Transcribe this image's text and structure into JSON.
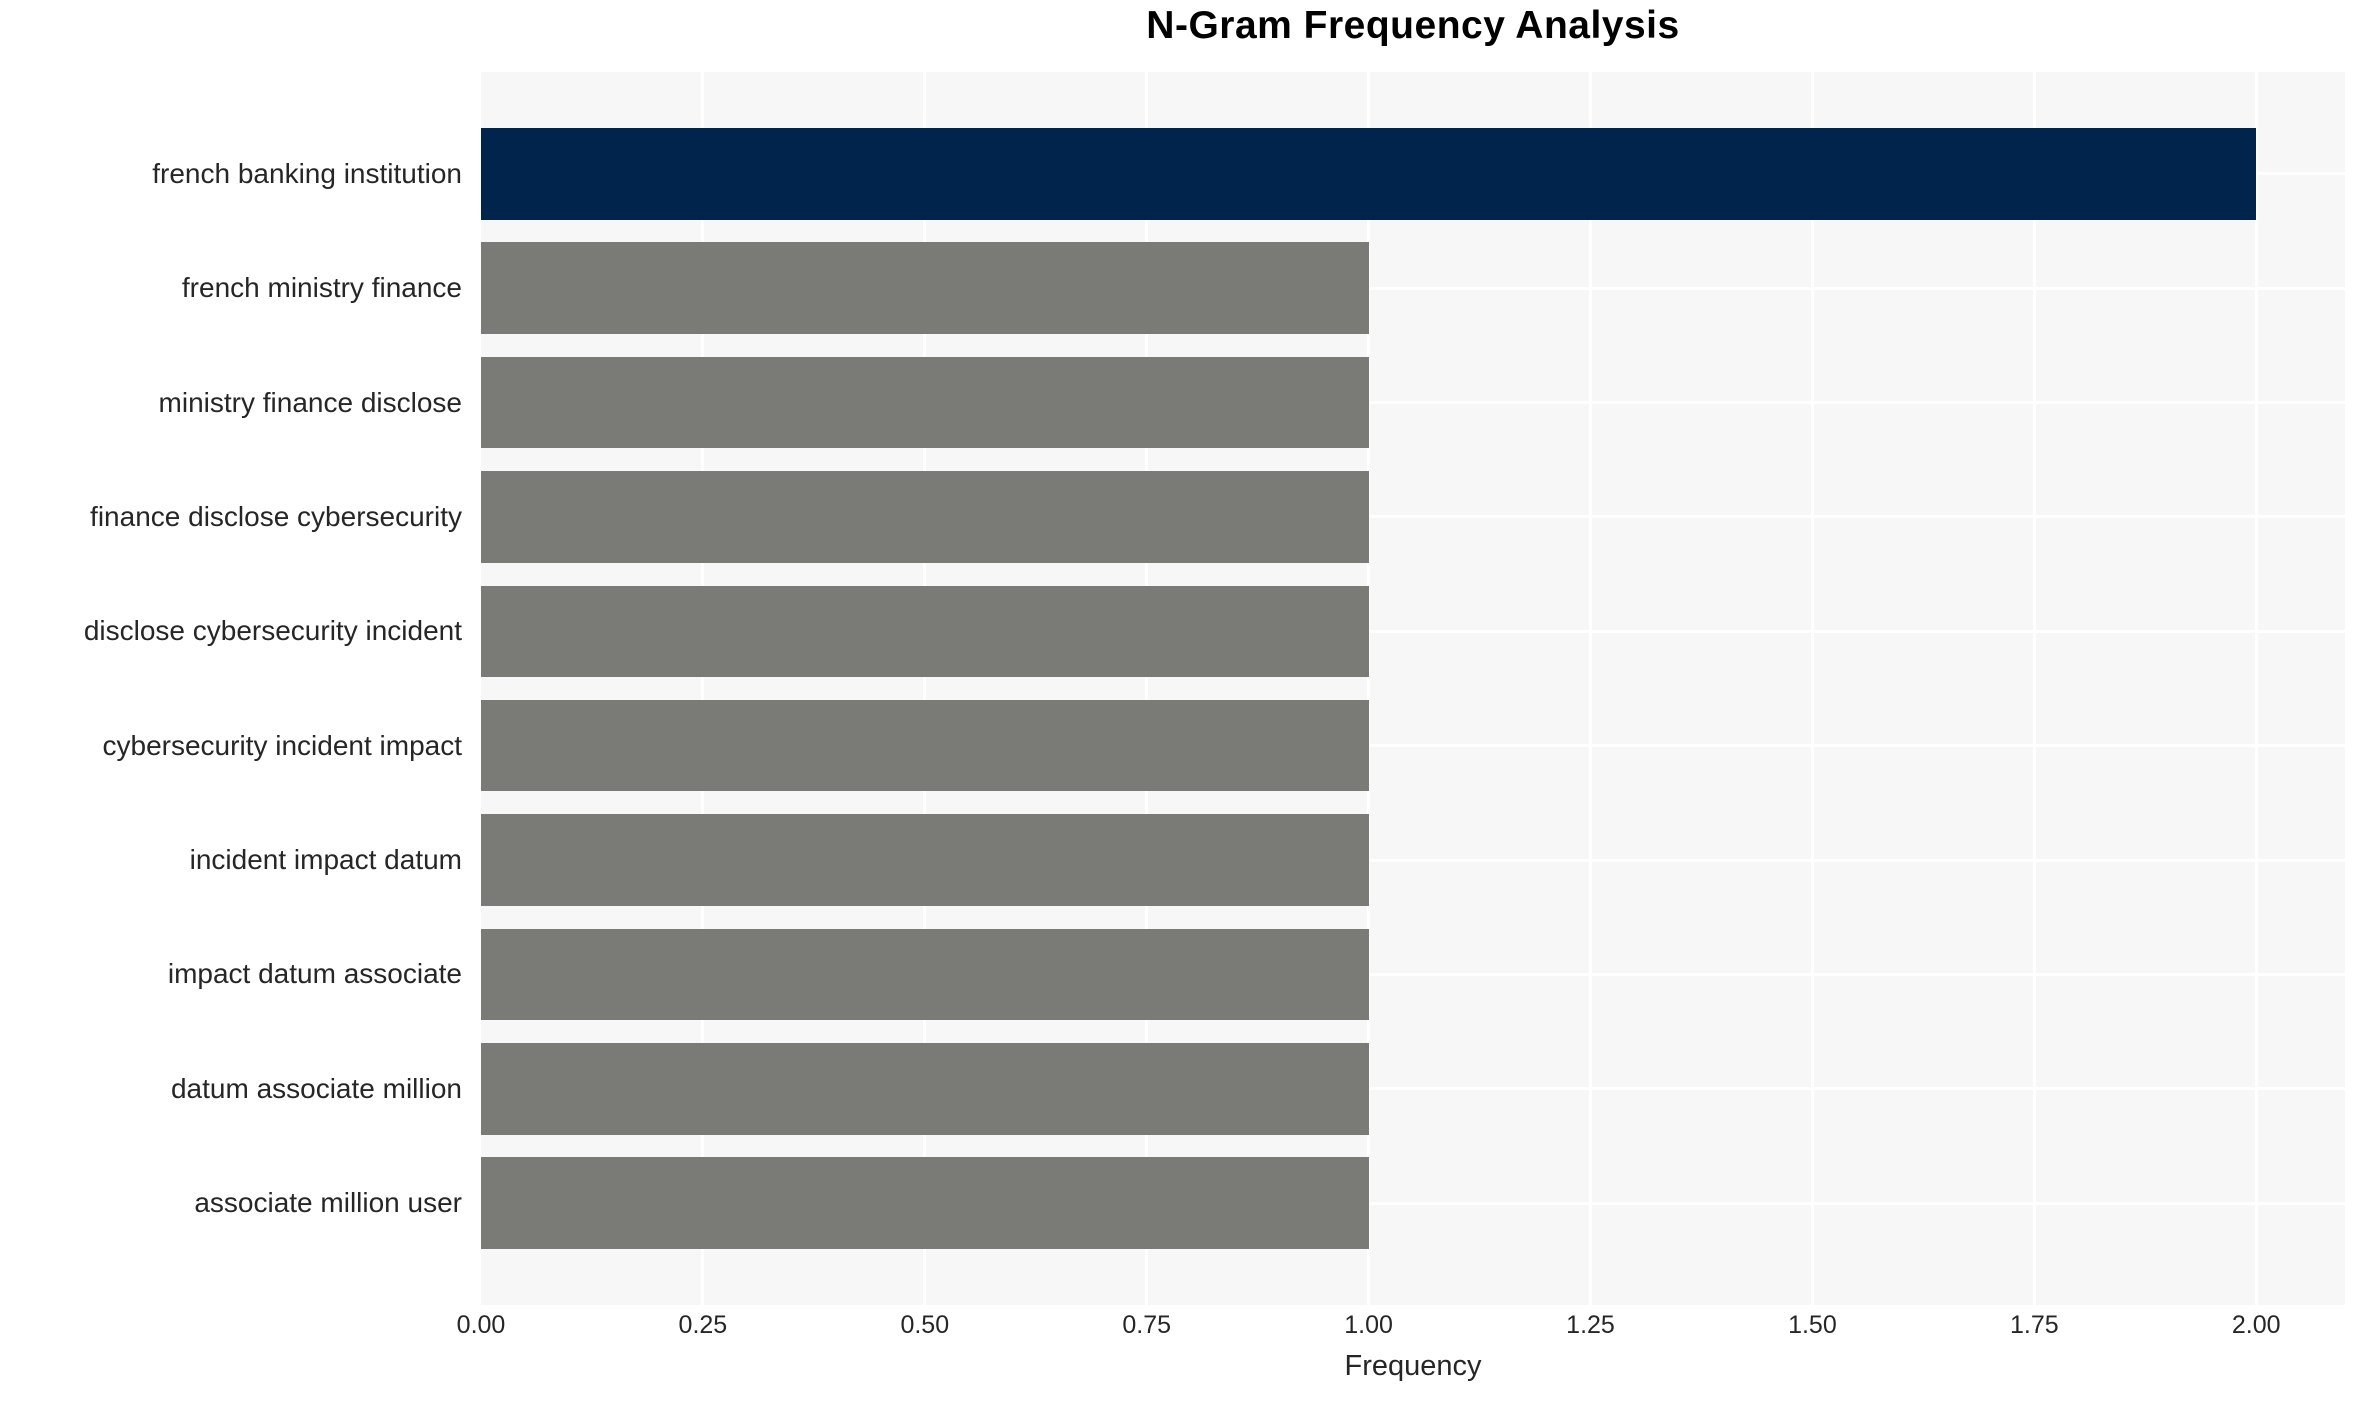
{
  "chart_data": {
    "type": "bar",
    "orientation": "horizontal",
    "title": "N-Gram Frequency Analysis",
    "xlabel": "Frequency",
    "ylabel": "",
    "categories": [
      "french banking institution",
      "french ministry finance",
      "ministry finance disclose",
      "finance disclose cybersecurity",
      "disclose cybersecurity incident",
      "cybersecurity incident impact",
      "incident impact datum",
      "impact datum associate",
      "datum associate million",
      "associate million user"
    ],
    "values": [
      2,
      1,
      1,
      1,
      1,
      1,
      1,
      1,
      1,
      1
    ],
    "bar_palette": [
      "#01244d",
      "#7a7b77",
      "#7a7b77",
      "#7a7b77",
      "#7a7b77",
      "#7a7b77",
      "#7a7b77",
      "#7a7b77",
      "#7a7b77",
      "#7a7b77"
    ],
    "x_ticks": [
      {
        "value": 0.0,
        "label": "0.00"
      },
      {
        "value": 0.25,
        "label": "0.25"
      },
      {
        "value": 0.5,
        "label": "0.50"
      },
      {
        "value": 0.75,
        "label": "0.75"
      },
      {
        "value": 1.0,
        "label": "1.00"
      },
      {
        "value": 1.25,
        "label": "1.25"
      },
      {
        "value": 1.5,
        "label": "1.50"
      },
      {
        "value": 1.75,
        "label": "1.75"
      },
      {
        "value": 2.0,
        "label": "2.00"
      }
    ],
    "xlim": [
      0,
      2.1
    ],
    "grid": true,
    "legend": false,
    "colors": {
      "figure_background": "#ffffff",
      "plot_background": "#f7f7f7",
      "gridline": "#ffffff",
      "highlight_bar": "#01244d",
      "default_bar": "#7a7b77",
      "tick_text": "#262626",
      "title_text": "#000000"
    }
  }
}
